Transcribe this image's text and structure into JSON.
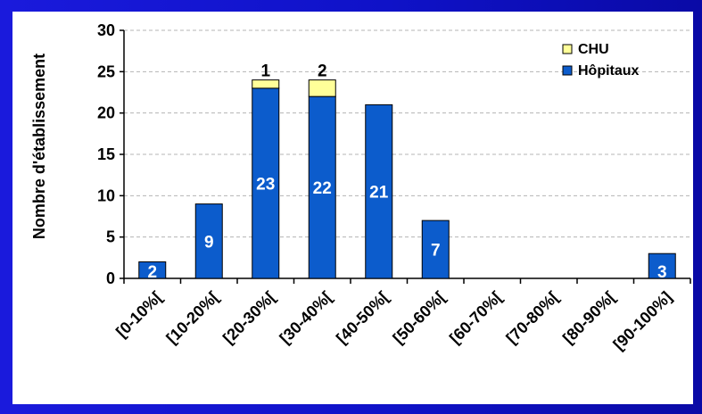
{
  "chart_data": {
    "type": "bar",
    "stacked": true,
    "categories": [
      "[0-10%[",
      "[10-20%[",
      "[20-30%[",
      "[30-40%[",
      "[40-50%[",
      "[50-60%[",
      "[60-70%[",
      "[70-80%[",
      "[80-90%[",
      "[90-100%]"
    ],
    "series": [
      {
        "name": "Hôpitaux",
        "color": "#0c5ccc",
        "values": [
          2,
          9,
          23,
          22,
          21,
          7,
          0,
          0,
          0,
          3
        ]
      },
      {
        "name": "CHU",
        "color": "#ffff99",
        "values": [
          0,
          0,
          1,
          2,
          0,
          0,
          0,
          0,
          0,
          0
        ]
      }
    ],
    "ylabel": "Nombre d'établissement",
    "xlabel": "",
    "title": "",
    "ylim": [
      0,
      30
    ],
    "yticks": [
      0,
      5,
      10,
      15,
      20,
      25,
      30
    ],
    "grid": true,
    "legend_position": "top-right",
    "colors": {
      "frame": "#1010cc",
      "bar_outline": "#000000",
      "grid": "#b4b4b4",
      "data_label_inside": "#ffffff",
      "data_label_above": "#000000"
    }
  }
}
